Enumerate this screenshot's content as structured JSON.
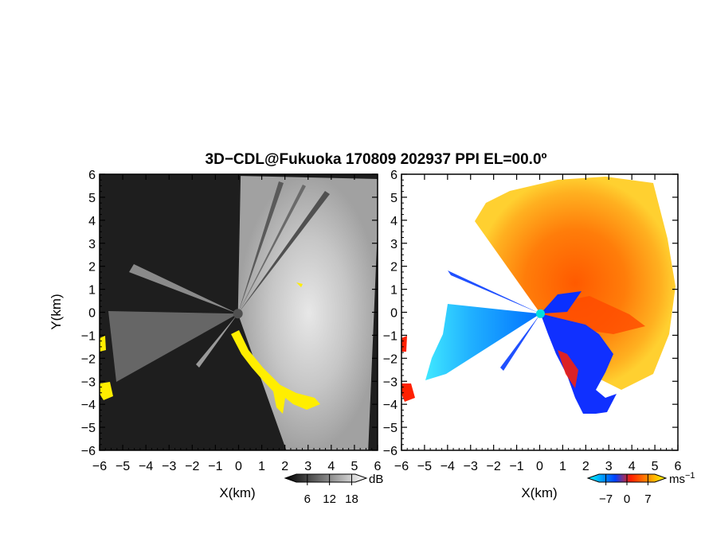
{
  "title": "3D−CDL@Fukuoka 170809 202937 PPI EL=00.0º",
  "chart_data": [
    {
      "type": "heatmap",
      "panel": "reflectivity",
      "xlabel": "X(km)",
      "ylabel": "Y(km)",
      "xlim": [
        -6,
        6
      ],
      "ylim": [
        -6,
        6
      ],
      "xticks": [
        -6,
        -5,
        -4,
        -3,
        -2,
        -1,
        0,
        1,
        2,
        3,
        4,
        5,
        6
      ],
      "xtick_labels": [
        "−6",
        "−5",
        "−4",
        "−3",
        "−2",
        "−1",
        "0",
        "1",
        "2",
        "3",
        "4",
        "5",
        "6"
      ],
      "yticks": [
        6,
        5,
        4,
        3,
        2,
        1,
        0,
        -1,
        -2,
        -3,
        -4,
        -5,
        -6
      ],
      "ytick_labels": [
        "6",
        "5",
        "4",
        "3",
        "2",
        "1",
        "0",
        "−1",
        "−2",
        "−3",
        "−4",
        "−5",
        "−6"
      ],
      "colorbar": {
        "unit": "dB",
        "ticks": [
          6,
          12,
          18
        ],
        "tick_labels": [
          "6",
          "12",
          "18"
        ],
        "colors": [
          "#000000",
          "#ffffff"
        ]
      },
      "colors": {
        "background": "#1e1e1e",
        "bright_sector": "#d8d8d8",
        "flag": "#ffee00",
        "radar_site": "#505050"
      }
    },
    {
      "type": "heatmap",
      "panel": "doppler_velocity",
      "xlabel": "X(km)",
      "xlim": [
        -6,
        6
      ],
      "ylim": [
        -6,
        6
      ],
      "xticks": [
        -6,
        -5,
        -4,
        -3,
        -2,
        -1,
        0,
        1,
        2,
        3,
        4,
        5,
        6
      ],
      "xtick_labels": [
        "−6",
        "−5",
        "−4",
        "−3",
        "−2",
        "−1",
        "0",
        "1",
        "2",
        "3",
        "4",
        "5",
        "6"
      ],
      "yticks": [
        6,
        5,
        4,
        3,
        2,
        1,
        0,
        -1,
        -2,
        -3,
        -4,
        -5,
        -6
      ],
      "ytick_labels": [
        "6",
        "5",
        "4",
        "3",
        "2",
        "1",
        "0",
        "−1",
        "−2",
        "−3",
        "−4",
        "−5",
        "−6"
      ],
      "colorbar": {
        "unit": "ms",
        "unit_exponent": "−1",
        "ticks": [
          -7,
          0,
          7
        ],
        "tick_labels": [
          "−7",
          "0",
          "7"
        ],
        "colors": [
          "#00ffff",
          "#0040ff",
          "#ff2000",
          "#ffff00"
        ]
      },
      "colors": {
        "background": "#ffffff",
        "radar_site": "#00e0e0"
      }
    }
  ]
}
